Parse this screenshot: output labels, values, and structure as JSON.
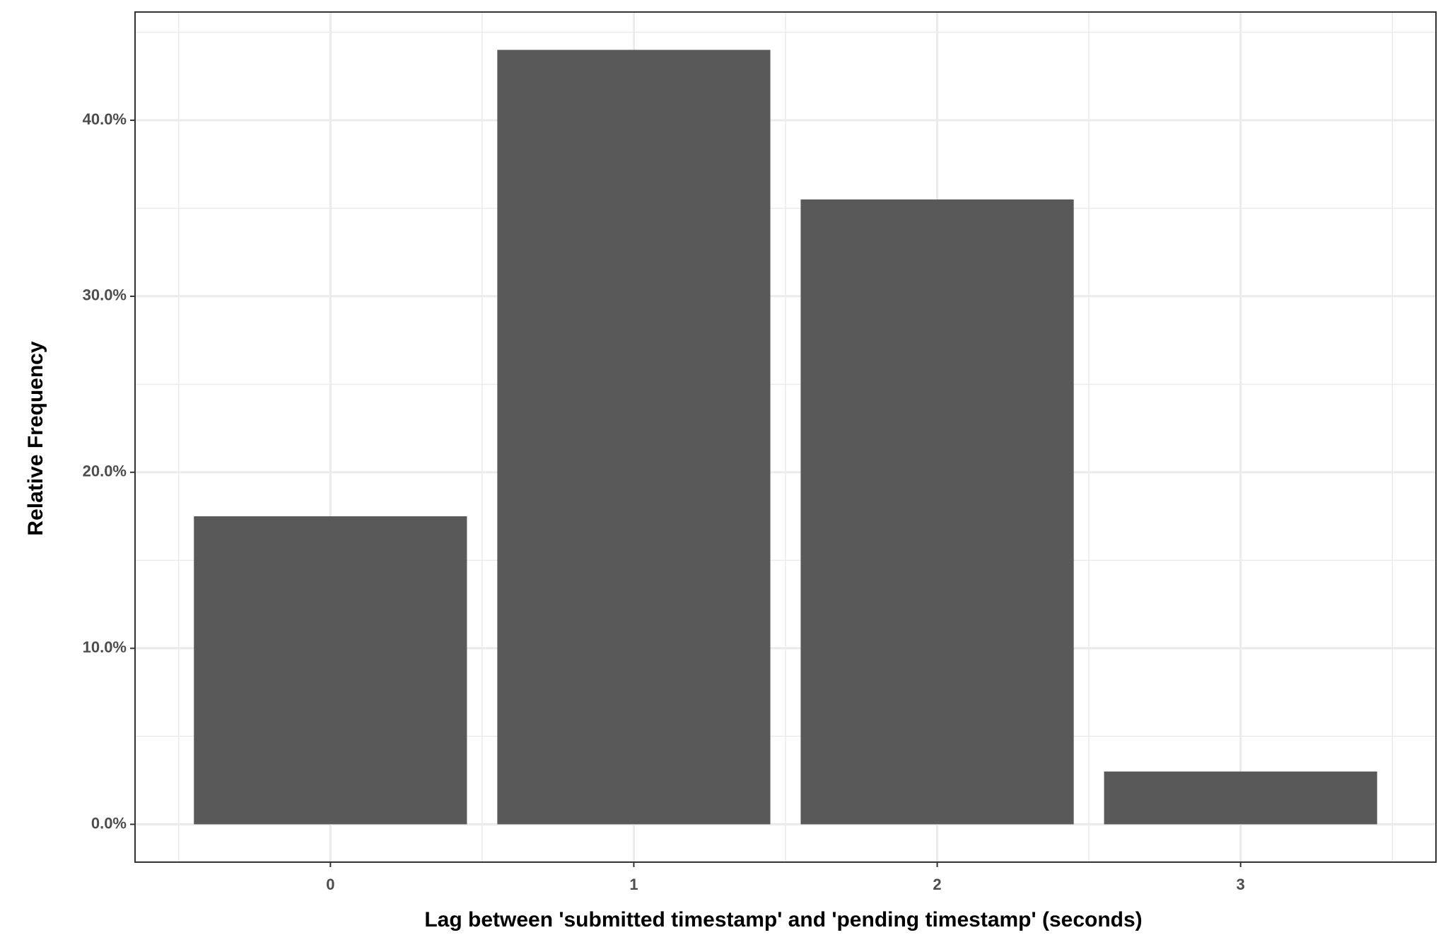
{
  "chart_data": {
    "type": "bar",
    "x_label": "Lag between 'submitted timestamp' and 'pending timestamp' (seconds)",
    "y_label": "Relative Frequency",
    "x": [
      0,
      1,
      2,
      3
    ],
    "values": [
      17.5,
      44.0,
      35.5,
      3.0
    ],
    "color": "#595959",
    "xlim": [
      -0.644,
      3.644
    ],
    "xticks": [
      0,
      1,
      2,
      3
    ],
    "ylim": [
      -2.15,
      46.15
    ],
    "yticks": [
      {
        "value": 0,
        "label": "0.0%"
      },
      {
        "value": 10,
        "label": "10.0%"
      },
      {
        "value": 20,
        "label": "20.0%"
      },
      {
        "value": 30,
        "label": "30.0%"
      },
      {
        "value": 40,
        "label": "40.0%"
      }
    ],
    "grid": true
  }
}
